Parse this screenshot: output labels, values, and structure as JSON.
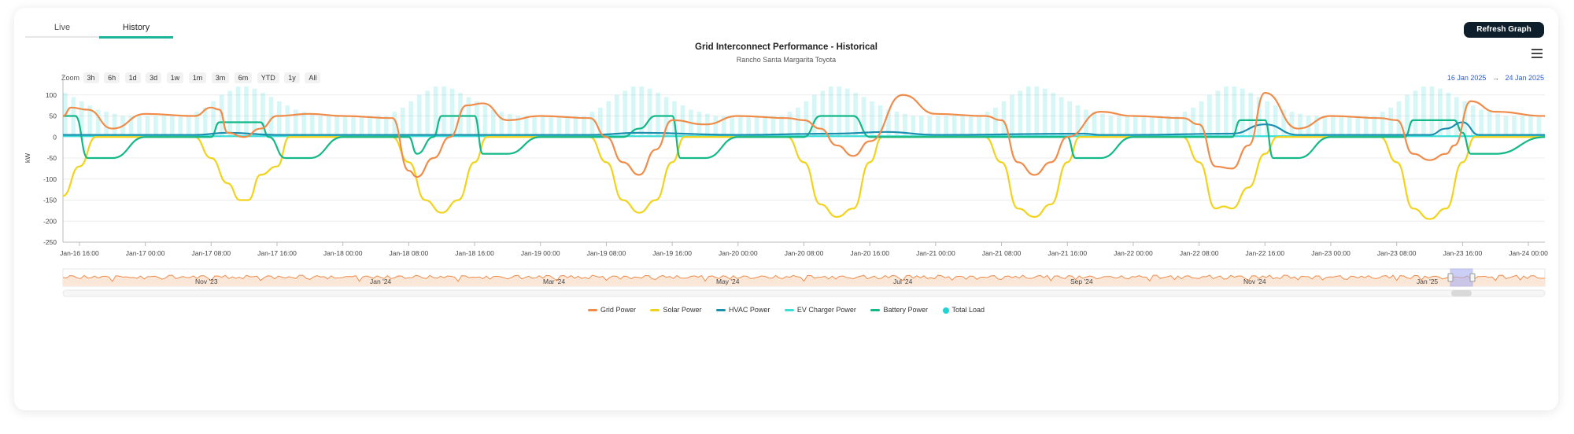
{
  "tabs": [
    {
      "label": "Live"
    },
    {
      "label": "History"
    }
  ],
  "refresh_label": "Refresh Graph",
  "title": "Grid Interconnect Performance - Historical",
  "subtitle": "Rancho Santa Margarita Toyota",
  "zoom": {
    "label": "Zoom",
    "buttons": [
      "3h",
      "6h",
      "1d",
      "3d",
      "1w",
      "1m",
      "3m",
      "6m",
      "YTD",
      "1y",
      "All"
    ]
  },
  "range": {
    "from": "16 Jan 2025",
    "arrow": "→",
    "to": "24 Jan 2025"
  },
  "navigator": {
    "labels": [
      "Nov '23",
      "Jan '24",
      "Mar '24",
      "May '24",
      "Jul '24",
      "Sep '24",
      "Nov '24",
      "Jan '25"
    ]
  },
  "colors": {
    "grid": "#f08c4a",
    "solar": "#f2d21b",
    "hvac": "#1d8fae",
    "ev": "#38dfd8",
    "battery": "#12b886",
    "load": "#22d3d3"
  },
  "chart_data": {
    "type": "line",
    "ylabel": "kW",
    "ylim": [
      -250,
      150
    ],
    "yticks": [
      100,
      50,
      0,
      -50,
      -100,
      -150,
      -200,
      -250
    ],
    "xlim": [
      "2025-01-16 14:00",
      "2025-01-24 02:00"
    ],
    "xticks": [
      "Jan-16 16:00",
      "Jan-17 00:00",
      "Jan-17 08:00",
      "Jan-17 16:00",
      "Jan-18 00:00",
      "Jan-18 08:00",
      "Jan-18 16:00",
      "Jan-19 00:00",
      "Jan-19 08:00",
      "Jan-19 16:00",
      "Jan-20 00:00",
      "Jan-20 08:00",
      "Jan-20 16:00",
      "Jan-21 00:00",
      "Jan-21 08:00",
      "Jan-21 16:00",
      "Jan-22 00:00",
      "Jan-22 08:00",
      "Jan-22 16:00",
      "Jan-23 00:00",
      "Jan-23 08:00",
      "Jan-23 16:00",
      "Jan-24 00:00"
    ],
    "series": [
      {
        "name": "Grid Power",
        "x": [
          "2025-01-16 14:00",
          "2025-01-16 15:00",
          "2025-01-16 17:00",
          "2025-01-16 20:00",
          "2025-01-17 00:00",
          "2025-01-17 06:00",
          "2025-01-17 08:00",
          "2025-01-17 09:00",
          "2025-01-17 10:00",
          "2025-01-17 12:00",
          "2025-01-17 14:00",
          "2025-01-17 16:00",
          "2025-01-17 20:00",
          "2025-01-18 00:00",
          "2025-01-18 06:00",
          "2025-01-18 08:00",
          "2025-01-18 09:00",
          "2025-01-18 11:00",
          "2025-01-18 13:00",
          "2025-01-18 15:00",
          "2025-01-18 17:00",
          "2025-01-18 20:00",
          "2025-01-19 00:00",
          "2025-01-19 06:00",
          "2025-01-19 08:00",
          "2025-01-19 10:00",
          "2025-01-19 12:00",
          "2025-01-19 14:00",
          "2025-01-19 16:00",
          "2025-01-19 20:00",
          "2025-01-20 00:00",
          "2025-01-20 06:00",
          "2025-01-20 08:00",
          "2025-01-20 10:00",
          "2025-01-20 12:00",
          "2025-01-20 14:00",
          "2025-01-20 16:00",
          "2025-01-20 20:00",
          "2025-01-21 00:00",
          "2025-01-21 06:00",
          "2025-01-21 08:00",
          "2025-01-21 10:00",
          "2025-01-21 12:00",
          "2025-01-21 14:00",
          "2025-01-21 16:00",
          "2025-01-21 20:00",
          "2025-01-22 00:00",
          "2025-01-22 06:00",
          "2025-01-22 08:00",
          "2025-01-22 10:00",
          "2025-01-22 12:00",
          "2025-01-22 14:00",
          "2025-01-22 16:00",
          "2025-01-22 20:00",
          "2025-01-23 00:00",
          "2025-01-23 06:00",
          "2025-01-23 08:00",
          "2025-01-23 10:00",
          "2025-01-23 12:00",
          "2025-01-23 14:00",
          "2025-01-23 15:00",
          "2025-01-23 17:00",
          "2025-01-23 20:00",
          "2025-01-24 02:00"
        ],
        "values": [
          50,
          70,
          65,
          20,
          55,
          50,
          70,
          65,
          10,
          0,
          20,
          50,
          55,
          50,
          45,
          -80,
          -95,
          -50,
          0,
          75,
          80,
          40,
          50,
          45,
          0,
          -60,
          -90,
          -30,
          40,
          30,
          50,
          45,
          40,
          20,
          -20,
          -45,
          -10,
          100,
          55,
          50,
          40,
          -60,
          -90,
          -60,
          0,
          60,
          50,
          45,
          30,
          -70,
          -75,
          -20,
          105,
          20,
          50,
          45,
          40,
          -40,
          -55,
          -40,
          -20,
          85,
          60,
          50
        ]
      },
      {
        "name": "Solar Power",
        "x": [
          "2025-01-16 14:00",
          "2025-01-16 16:00",
          "2025-01-16 18:00",
          "2025-01-17 06:00",
          "2025-01-17 08:00",
          "2025-01-17 10:00",
          "2025-01-17 11:30",
          "2025-01-17 12:30",
          "2025-01-17 14:00",
          "2025-01-17 16:00",
          "2025-01-17 17:30",
          "2025-01-18 06:00",
          "2025-01-18 08:00",
          "2025-01-18 10:00",
          "2025-01-18 12:00",
          "2025-01-18 14:00",
          "2025-01-18 16:00",
          "2025-01-18 17:30",
          "2025-01-19 06:00",
          "2025-01-19 08:00",
          "2025-01-19 10:00",
          "2025-01-19 12:00",
          "2025-01-19 14:00",
          "2025-01-19 16:00",
          "2025-01-19 17:30",
          "2025-01-20 06:00",
          "2025-01-20 08:00",
          "2025-01-20 10:00",
          "2025-01-20 12:00",
          "2025-01-20 14:00",
          "2025-01-20 16:00",
          "2025-01-20 17:30",
          "2025-01-21 06:00",
          "2025-01-21 08:00",
          "2025-01-21 10:00",
          "2025-01-21 12:00",
          "2025-01-21 14:00",
          "2025-01-21 16:00",
          "2025-01-21 17:30",
          "2025-01-22 06:00",
          "2025-01-22 08:00",
          "2025-01-22 10:00",
          "2025-01-22 11:00",
          "2025-01-22 12:00",
          "2025-01-22 14:00",
          "2025-01-22 16:00",
          "2025-01-22 17:30",
          "2025-01-23 06:00",
          "2025-01-23 08:00",
          "2025-01-23 10:00",
          "2025-01-23 12:00",
          "2025-01-23 14:00",
          "2025-01-23 16:00",
          "2025-01-23 17:30",
          "2025-01-24 02:00"
        ],
        "values": [
          -140,
          -70,
          0,
          0,
          -50,
          -110,
          -150,
          -150,
          -90,
          -70,
          0,
          0,
          -60,
          -150,
          -180,
          -150,
          -60,
          0,
          0,
          -60,
          -150,
          -180,
          -150,
          -60,
          0,
          0,
          -60,
          -160,
          -190,
          -170,
          -60,
          0,
          0,
          -60,
          -170,
          -190,
          -160,
          -60,
          0,
          0,
          -60,
          -170,
          -165,
          -170,
          -120,
          -40,
          0,
          0,
          -60,
          -170,
          -195,
          -170,
          -60,
          0,
          0
        ]
      },
      {
        "name": "HVAC Power",
        "x": [
          "2025-01-16 14:00",
          "2025-01-17 00:00",
          "2025-01-17 06:00",
          "2025-01-17 10:00",
          "2025-01-17 16:00",
          "2025-01-18 00:00",
          "2025-01-19 06:00",
          "2025-01-19 12:00",
          "2025-01-20 00:00",
          "2025-01-20 12:00",
          "2025-01-20 18:00",
          "2025-01-21 00:00",
          "2025-01-21 18:00",
          "2025-01-21 20:00",
          "2025-01-22 00:00",
          "2025-01-22 12:00",
          "2025-01-22 16:00",
          "2025-01-22 20:00",
          "2025-01-23 12:00",
          "2025-01-23 14:00",
          "2025-01-23 16:00",
          "2025-01-23 18:00",
          "2025-01-24 02:00"
        ],
        "values": [
          5,
          5,
          5,
          10,
          5,
          5,
          5,
          10,
          5,
          8,
          12,
          5,
          8,
          5,
          5,
          8,
          30,
          5,
          5,
          20,
          35,
          5,
          5
        ]
      },
      {
        "name": "EV Charger Power",
        "x": [
          "2025-01-16 14:00",
          "2025-01-24 02:00"
        ],
        "values": [
          2,
          2
        ]
      },
      {
        "name": "Battery Power",
        "x": [
          "2025-01-16 14:00",
          "2025-01-16 15:30",
          "2025-01-16 17:00",
          "2025-01-16 20:00",
          "2025-01-17 00:00",
          "2025-01-17 08:00",
          "2025-01-17 09:00",
          "2025-01-17 14:00",
          "2025-01-17 15:00",
          "2025-01-17 17:00",
          "2025-01-17 20:00",
          "2025-01-18 00:00",
          "2025-01-18 08:00",
          "2025-01-18 09:00",
          "2025-01-18 11:00",
          "2025-01-18 12:00",
          "2025-01-18 16:00",
          "2025-01-18 17:00",
          "2025-01-18 20:00",
          "2025-01-19 00:00",
          "2025-01-19 10:00",
          "2025-01-19 12:00",
          "2025-01-19 14:00",
          "2025-01-19 16:00",
          "2025-01-19 17:00",
          "2025-01-19 20:00",
          "2025-01-20 00:00",
          "2025-01-20 08:00",
          "2025-01-20 10:00",
          "2025-01-20 14:00",
          "2025-01-20 16:00",
          "2025-01-21 16:00",
          "2025-01-21 17:00",
          "2025-01-21 20:00",
          "2025-01-22 00:00",
          "2025-01-22 12:00",
          "2025-01-22 13:00",
          "2025-01-22 16:00",
          "2025-01-22 17:00",
          "2025-01-22 20:00",
          "2025-01-23 00:00",
          "2025-01-23 09:00",
          "2025-01-23 10:00",
          "2025-01-23 15:00",
          "2025-01-23 16:00",
          "2025-01-23 17:00",
          "2025-01-23 20:00",
          "2025-01-24 02:00"
        ],
        "values": [
          50,
          50,
          -50,
          -50,
          0,
          0,
          35,
          35,
          0,
          -50,
          -50,
          0,
          0,
          -40,
          0,
          50,
          50,
          -40,
          -40,
          0,
          0,
          20,
          50,
          50,
          -50,
          -50,
          0,
          0,
          50,
          50,
          0,
          0,
          -50,
          -50,
          0,
          0,
          40,
          40,
          -50,
          -50,
          0,
          0,
          40,
          40,
          10,
          -40,
          -40,
          0
        ]
      }
    ],
    "total_load": {
      "name": "Total Load",
      "step_hours": 1,
      "daily_profile": [
        50,
        50,
        50,
        50,
        50,
        50,
        60,
        70,
        85,
        100,
        110,
        120,
        120,
        115,
        105,
        95,
        85,
        75,
        65,
        60,
        55,
        50,
        50,
        50
      ]
    }
  }
}
